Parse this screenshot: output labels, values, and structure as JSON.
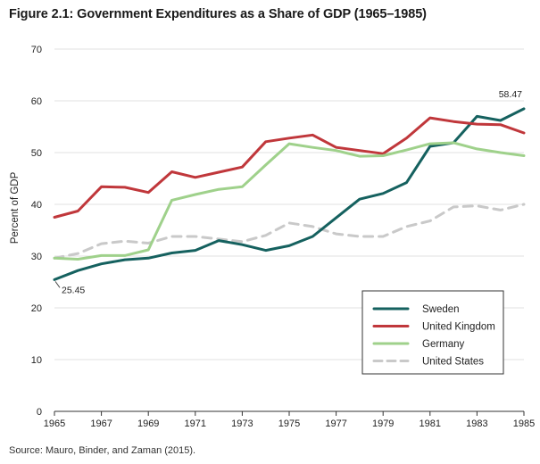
{
  "title": "Figure 2.1: Government Expenditures as a Share of GDP (1965–1985)",
  "source": "Source: Mauro, Binder, and Zaman (2015).",
  "chart_data": {
    "type": "line",
    "title": "Figure 2.1: Government Expenditures as a Share of GDP (1965–1985)",
    "xlabel": "",
    "ylabel": "Percent of GDP",
    "xlim": [
      1965,
      1985
    ],
    "ylim": [
      0,
      70
    ],
    "x_ticks": [
      1965,
      1967,
      1969,
      1971,
      1973,
      1975,
      1977,
      1979,
      1981,
      1983,
      1985
    ],
    "y_ticks": [
      0,
      10,
      20,
      30,
      40,
      50,
      60,
      70
    ],
    "grid": true,
    "legend_position": "bottom-right",
    "x": [
      1965,
      1966,
      1967,
      1968,
      1969,
      1970,
      1971,
      1972,
      1973,
      1974,
      1975,
      1976,
      1977,
      1978,
      1979,
      1980,
      1981,
      1982,
      1983,
      1984,
      1985
    ],
    "series": [
      {
        "name": "Sweden",
        "color": "#15615f",
        "dash": "solid",
        "values": [
          25.45,
          27.2,
          28.5,
          29.3,
          29.6,
          30.6,
          31.1,
          33.0,
          32.2,
          31.1,
          32.0,
          33.8,
          37.4,
          41.0,
          42.1,
          44.2,
          51.2,
          51.9,
          57.0,
          56.2,
          58.47
        ]
      },
      {
        "name": "United Kingdom",
        "color": "#c0373b",
        "dash": "solid",
        "values": [
          37.5,
          38.7,
          43.4,
          43.3,
          42.3,
          46.3,
          45.2,
          46.2,
          47.2,
          52.1,
          52.8,
          53.4,
          51.0,
          50.4,
          49.8,
          52.8,
          56.7,
          56.0,
          55.5,
          55.4,
          53.8
        ]
      },
      {
        "name": "Germany",
        "color": "#9fd18b",
        "dash": "solid",
        "values": [
          29.6,
          29.4,
          30.1,
          30.1,
          31.2,
          40.8,
          41.9,
          42.9,
          43.4,
          47.6,
          51.7,
          51.0,
          50.4,
          49.3,
          49.4,
          50.5,
          51.7,
          51.9,
          50.7,
          50.0,
          49.4
        ]
      },
      {
        "name": "United States",
        "color": "#c9c9c9",
        "dash": "dashed",
        "values": [
          29.6,
          30.5,
          32.4,
          32.9,
          32.5,
          33.8,
          33.8,
          33.3,
          32.8,
          34.0,
          36.4,
          35.7,
          34.3,
          33.8,
          33.8,
          35.7,
          36.8,
          39.5,
          39.7,
          38.9,
          40.0
        ]
      }
    ],
    "annotations": [
      {
        "text": "58.47",
        "x": 1985,
        "y": 58.47
      },
      {
        "text": "25.45",
        "x": 1965,
        "y": 25.45
      }
    ]
  }
}
